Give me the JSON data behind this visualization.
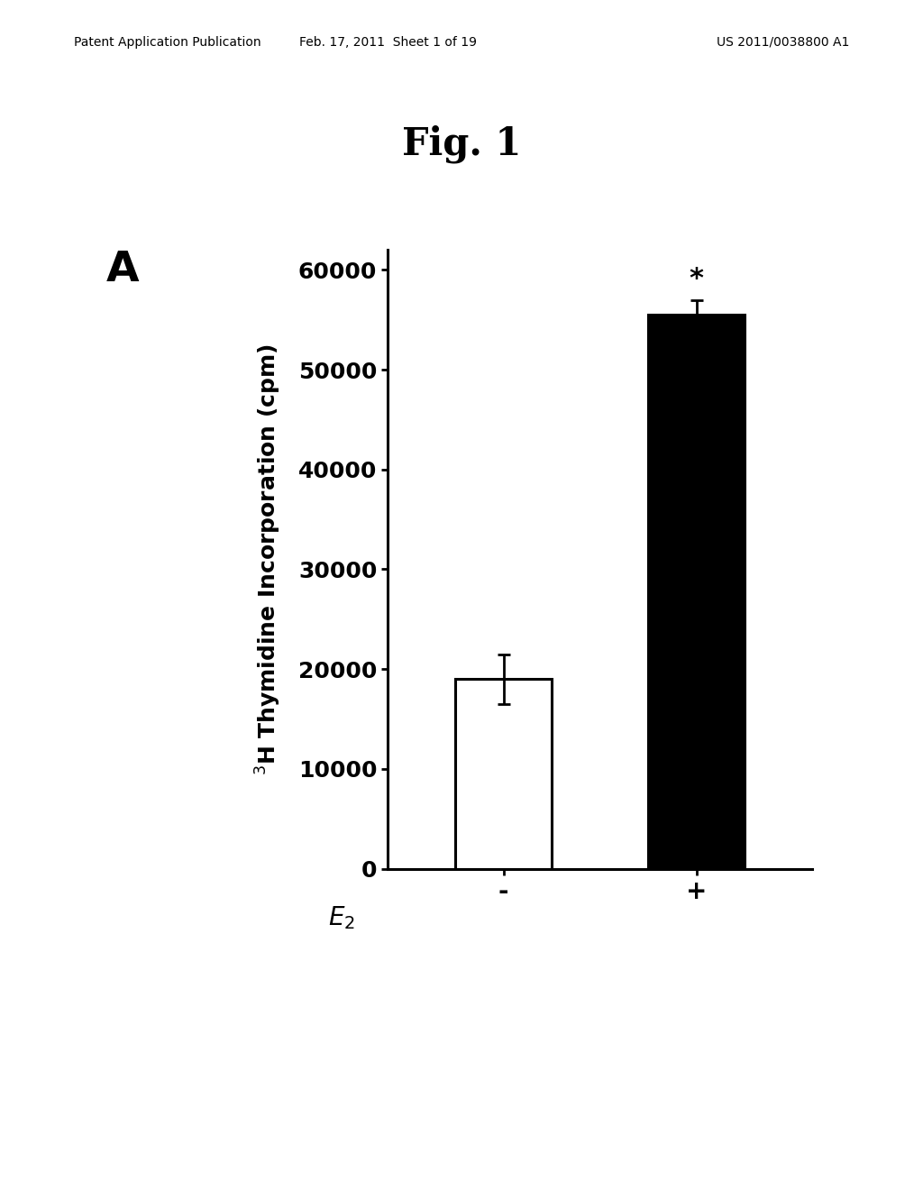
{
  "title": "Fig. 1",
  "panel_label": "A",
  "header_left": "Patent Application Publication",
  "header_center": "Feb. 17, 2011  Sheet 1 of 19",
  "header_right": "US 2011/0038800 A1",
  "ylabel": "$^{3}$H Thymidine Incorporation (cpm)",
  "e2_label": "$E_2$",
  "categories": [
    "-",
    "+"
  ],
  "values": [
    19000,
    55500
  ],
  "errors": [
    2500,
    1500
  ],
  "bar_colors": [
    "#ffffff",
    "#000000"
  ],
  "bar_edgecolors": [
    "#000000",
    "#000000"
  ],
  "ylim": [
    0,
    62000
  ],
  "yticks": [
    0,
    10000,
    20000,
    30000,
    40000,
    50000,
    60000
  ],
  "bar_width": 0.5,
  "significance_label": "*",
  "background_color": "#ffffff"
}
